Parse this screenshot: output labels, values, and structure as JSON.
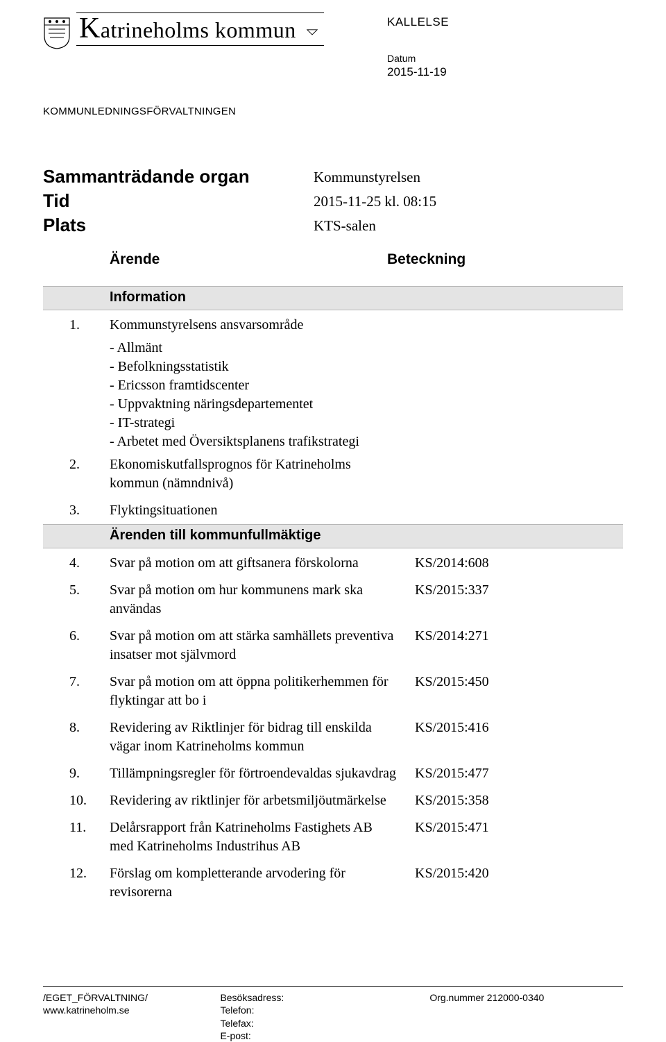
{
  "header": {
    "org_name_rest": "atrineholms kommun",
    "department": "KOMMUNLEDNINGSFÖRVALTNINGEN",
    "doc_type": "KALLELSE",
    "date_label": "Datum",
    "date_value": "2015-11-19"
  },
  "meta": {
    "rows": [
      {
        "label": "Sammanträdande organ",
        "value": "Kommunstyrelsen"
      },
      {
        "label": "Tid",
        "value": "2015-11-25 kl. 08:15"
      },
      {
        "label": "Plats",
        "value": "KTS-salen"
      }
    ],
    "col_left": "Ärende",
    "col_right": "Beteckning"
  },
  "sections": [
    {
      "heading": "Information"
    },
    {
      "items": [
        {
          "num": "1.",
          "title": "Kommunstyrelsens ansvarsområde",
          "sub": [
            "- Allmänt",
            "- Befolkningsstatistik",
            "- Ericsson framtidscenter",
            "- Uppvaktning näringsdepartementet",
            "- IT-strategi",
            "- Arbetet med Översiktsplanens trafikstrategi"
          ],
          "ref": ""
        },
        {
          "num": "2.",
          "title": "Ekonomiskutfallsprognos för Katrineholms kommun (nämndnivå)",
          "ref": ""
        },
        {
          "num": "3.",
          "title": "Flyktingsituationen",
          "ref": ""
        }
      ]
    },
    {
      "heading": "Ärenden till kommunfullmäktige"
    },
    {
      "items": [
        {
          "num": "4.",
          "title": "Svar på motion om att giftsanera förskolorna",
          "ref": "KS/2014:608"
        },
        {
          "num": "5.",
          "title": "Svar på motion om hur kommunens mark ska användas",
          "ref": "KS/2015:337"
        },
        {
          "num": "6.",
          "title": "Svar på motion om att stärka samhällets preventiva insatser mot självmord",
          "ref": "KS/2014:271"
        },
        {
          "num": "7.",
          "title": "Svar på motion om att öppna politikerhemmen för flyktingar att bo i",
          "ref": "KS/2015:450"
        },
        {
          "num": "8.",
          "title": "Revidering av Riktlinjer för bidrag till enskilda vägar inom Katrineholms kommun",
          "ref": "KS/2015:416"
        },
        {
          "num": "9.",
          "title": "Tillämpningsregler för förtroendevaldas sjukavdrag",
          "ref": "KS/2015:477"
        },
        {
          "num": "10.",
          "title": "Revidering av riktlinjer för arbetsmiljöutmärkelse",
          "ref": "KS/2015:358"
        },
        {
          "num": "11.",
          "title": "Delårsrapport från Katrineholms Fastighets AB med Katrineholms Industrihus AB",
          "ref": "KS/2015:471"
        },
        {
          "num": "12.",
          "title": "Förslag om kompletterande arvodering för revisorerna",
          "ref": "KS/2015:420"
        }
      ]
    }
  ],
  "footer": {
    "col1": [
      "/EGET_FÖRVALTNING/",
      "",
      "www.katrineholm.se"
    ],
    "col2": [
      "Besöksadress:",
      "Telefon:",
      "Telefax:",
      "E-post:"
    ],
    "col3": [
      "Org.nummer 212000-0340"
    ]
  },
  "colors": {
    "band_bg": "#e4e4e4",
    "band_border": "#b6b6b6",
    "text": "#000000",
    "background": "#ffffff"
  }
}
